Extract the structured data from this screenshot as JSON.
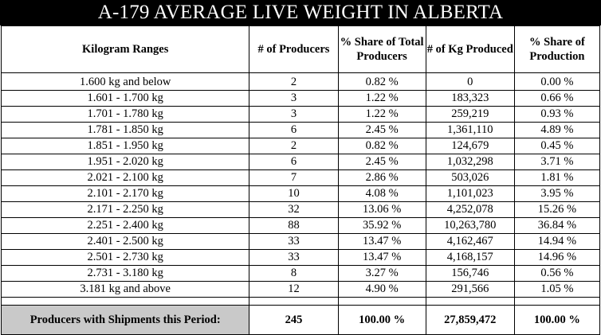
{
  "title": "A-179 AVERAGE LIVE WEIGHT IN ALBERTA",
  "headers": {
    "range": "Kilogram Ranges",
    "producers": "# of Producers",
    "share_producers": "% Share of Total Producers",
    "kg": "# of Kg Produced",
    "share_production": "% Share of Production"
  },
  "rows": [
    {
      "range": "1.600 kg and below",
      "producers": "2",
      "share_producers": "0.82 %",
      "kg": "0",
      "share_production": "0.00 %"
    },
    {
      "range": "1.601 - 1.700 kg",
      "producers": "3",
      "share_producers": "1.22 %",
      "kg": "183,323",
      "share_production": "0.66 %"
    },
    {
      "range": "1.701 - 1.780 kg",
      "producers": "3",
      "share_producers": "1.22 %",
      "kg": "259,219",
      "share_production": "0.93 %"
    },
    {
      "range": "1.781 - 1.850 kg",
      "producers": "6",
      "share_producers": "2.45 %",
      "kg": "1,361,110",
      "share_production": "4.89 %"
    },
    {
      "range": "1.851 - 1.950 kg",
      "producers": "2",
      "share_producers": "0.82 %",
      "kg": "124,679",
      "share_production": "0.45 %"
    },
    {
      "range": "1.951 - 2.020 kg",
      "producers": "6",
      "share_producers": "2.45 %",
      "kg": "1,032,298",
      "share_production": "3.71 %"
    },
    {
      "range": "2.021 - 2.100 kg",
      "producers": "7",
      "share_producers": "2.86 %",
      "kg": "503,026",
      "share_production": "1.81 %"
    },
    {
      "range": "2.101 - 2.170 kg",
      "producers": "10",
      "share_producers": "4.08 %",
      "kg": "1,101,023",
      "share_production": "3.95 %"
    },
    {
      "range": "2.171 - 2.250 kg",
      "producers": "32",
      "share_producers": "13.06 %",
      "kg": "4,252,078",
      "share_production": "15.26 %"
    },
    {
      "range": "2.251 - 2.400 kg",
      "producers": "88",
      "share_producers": "35.92 %",
      "kg": "10,263,780",
      "share_production": "36.84 %"
    },
    {
      "range": "2.401 - 2.500 kg",
      "producers": "33",
      "share_producers": "13.47 %",
      "kg": "4,162,467",
      "share_production": "14.94 %"
    },
    {
      "range": "2.501 - 2.730 kg",
      "producers": "33",
      "share_producers": "13.47 %",
      "kg": "4,168,157",
      "share_production": "14.96 %"
    },
    {
      "range": "2.731 - 3.180 kg",
      "producers": "8",
      "share_producers": "3.27 %",
      "kg": "156,746",
      "share_production": "0.56 %"
    },
    {
      "range": "3.181 kg and above",
      "producers": "12",
      "share_producers": "4.90 %",
      "kg": "291,566",
      "share_production": "1.05 %"
    }
  ],
  "totals": {
    "label": "Producers with Shipments this Period:",
    "producers": "245",
    "share_producers": "100.00 %",
    "kg": "27,859,472",
    "share_production": "100.00 %"
  },
  "colors": {
    "title_bg": "#000000",
    "title_text": "#ffffff",
    "total_label_bg": "#c9c9c9"
  }
}
